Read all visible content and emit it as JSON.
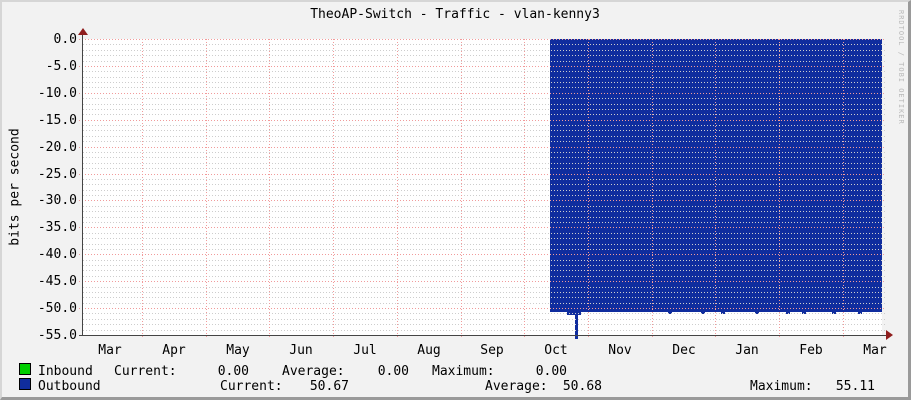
{
  "title": "TheoAP-Switch - Traffic - vlan-kenny3",
  "watermark": "RRDTOOL / TOBI OETIKER",
  "legend_labels": {
    "current": "Current:",
    "average": "Average:",
    "maximum": "Maximum:"
  },
  "colors": {
    "background": "#f2f2f2",
    "plot_background": "#ffffff",
    "grid_major": "#f19b9b",
    "grid_minor": "#cdcdcd",
    "axis": "#444444",
    "arrow": "#8f1d1d",
    "inbound": "#00cf00",
    "outbound": "#102d9e",
    "watermark_text": "#b9b9b9"
  },
  "chart_data": {
    "type": "area",
    "title": "TheoAP-Switch - Traffic - vlan-kenny3",
    "xlabel": "",
    "ylabel": "bits per second",
    "ylim": [
      -55.0,
      0.0
    ],
    "y_tick_step": 5.0,
    "y_ticks": [
      "0.0",
      "-5.0",
      "-10.0",
      "-15.0",
      "-20.0",
      "-25.0",
      "-30.0",
      "-35.0",
      "-40.0",
      "-45.0",
      "-50.0",
      "-55.0"
    ],
    "x_ticks": [
      "Mar",
      "Apr",
      "May",
      "Jun",
      "Jul",
      "Aug",
      "Sep",
      "Oct",
      "Nov",
      "Dec",
      "Jan",
      "Feb",
      "Mar"
    ],
    "grid": true,
    "legend_position": "bottom",
    "series": [
      {
        "name": "Inbound",
        "color": "#00cf00",
        "current": "0.00",
        "average": "0.00",
        "maximum": "0.00",
        "description": "flat at 0 across the entire year; no visible trace"
      },
      {
        "name": "Outbound",
        "color": "#102d9e",
        "current": "50.67",
        "average": "50.68",
        "maximum": "55.11",
        "plotted_negative": true,
        "description": "no data Mar through mid-Oct; solid filled area from 0 down to about -50.7 from mid-Oct to right edge (Mar), with a brief spike to -55.11 in late Oct and tiny dips along the bottom edge",
        "steady_value": -50.7,
        "spike_value": -55.11
      }
    ]
  }
}
